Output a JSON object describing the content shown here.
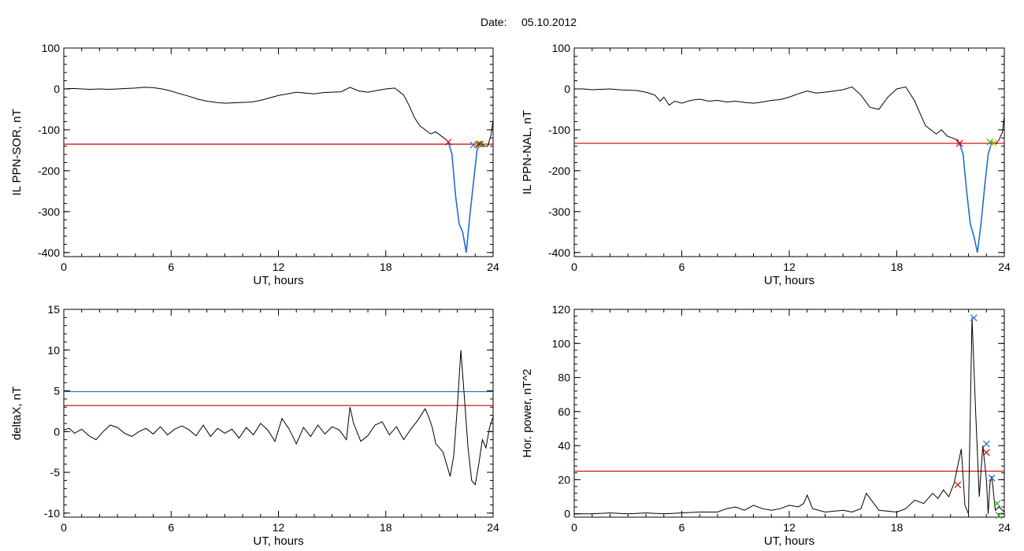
{
  "page": {
    "title_label": "Date:",
    "title_date": "05.10.2012"
  },
  "chart_data": [
    {
      "id": "sor",
      "type": "line",
      "xlabel": "UT, hours",
      "ylabel": "IL PPN-SOR, nT",
      "xlim": [
        0,
        24
      ],
      "ylim": [
        -410,
        100
      ],
      "xticks": [
        0,
        6,
        12,
        18,
        24
      ],
      "yticks": [
        100,
        0,
        -100,
        -200,
        -300,
        -400
      ],
      "threshold": {
        "value": -135,
        "color": "#cc0000"
      },
      "line_color": "#000000",
      "highlight_color": "#1f6fd6",
      "highlight_range": [
        21.5,
        23.3
      ],
      "series": [
        {
          "x": [
            0,
            0.5,
            1,
            1.5,
            2,
            2.5,
            3,
            3.5,
            4,
            4.5,
            5,
            5.5,
            6,
            6.5,
            7,
            7.5,
            8,
            8.5,
            9,
            9.5,
            10,
            10.5,
            11,
            11.5,
            12,
            12.5,
            13,
            13.5,
            14,
            14.5,
            15,
            15.5,
            16,
            16.5,
            17,
            17.5,
            18,
            18.5,
            19,
            19.3,
            19.6,
            19.9,
            20.2,
            20.5,
            20.8,
            21.1,
            21.4,
            21.5,
            21.7,
            21.9,
            22.1,
            22.3,
            22.5,
            22.7,
            22.9,
            23.1,
            23.3,
            23.5,
            23.7,
            23.9,
            24
          ],
          "y": [
            0,
            1,
            0,
            -1,
            0,
            -1,
            0,
            1,
            2,
            4,
            3,
            0,
            -5,
            -12,
            -18,
            -25,
            -30,
            -33,
            -35,
            -34,
            -33,
            -32,
            -28,
            -22,
            -16,
            -12,
            -8,
            -10,
            -12,
            -9,
            -8,
            -7,
            4,
            -5,
            -8,
            -4,
            0,
            2,
            -15,
            -40,
            -70,
            -90,
            -100,
            -110,
            -105,
            -115,
            -125,
            -130,
            -160,
            -260,
            -330,
            -350,
            -400,
            -310,
            -230,
            -150,
            -130,
            -140,
            -140,
            -110,
            -75
          ]
        }
      ],
      "markers": [
        {
          "x": 21.5,
          "y": -130,
          "color": "#cc0000"
        },
        {
          "x": 22.9,
          "y": -137,
          "color": "#1f6fd6"
        },
        {
          "x": 23.1,
          "y": -137,
          "color": "#e0a000"
        },
        {
          "x": 23.3,
          "y": -135,
          "color": "#22aa22"
        },
        {
          "x": 23.2,
          "y": -135,
          "color": "#cc0000"
        }
      ]
    },
    {
      "id": "nal",
      "type": "line",
      "xlabel": "UT, hours",
      "ylabel": "IL PPN-NAL, nT",
      "xlim": [
        0,
        24
      ],
      "ylim": [
        -410,
        100
      ],
      "xticks": [
        0,
        6,
        12,
        18,
        24
      ],
      "yticks": [
        100,
        0,
        -100,
        -200,
        -300,
        -400
      ],
      "threshold": {
        "value": -133,
        "color": "#cc0000"
      },
      "line_color": "#000000",
      "highlight_color": "#1f6fd6",
      "highlight_range": [
        21.5,
        23.3
      ],
      "series": [
        {
          "x": [
            0,
            0.5,
            1,
            1.5,
            2,
            2.5,
            3,
            3.5,
            4,
            4.5,
            4.8,
            5,
            5.3,
            5.6,
            6,
            6.5,
            7,
            7.5,
            8,
            8.5,
            9,
            9.5,
            10,
            10.5,
            11,
            11.5,
            12,
            12.5,
            13,
            13.5,
            14,
            14.5,
            15,
            15.5,
            16,
            16.5,
            17,
            17.5,
            18,
            18.5,
            19,
            19.3,
            19.6,
            19.9,
            20.2,
            20.5,
            20.8,
            21.1,
            21.4,
            21.5,
            21.7,
            21.9,
            22.1,
            22.3,
            22.5,
            22.7,
            22.9,
            23.1,
            23.3,
            23.5,
            23.7,
            23.9,
            24
          ],
          "y": [
            0,
            0,
            -2,
            -1,
            0,
            -2,
            -3,
            -4,
            -8,
            -15,
            -30,
            -20,
            -40,
            -30,
            -35,
            -28,
            -25,
            -30,
            -28,
            -32,
            -30,
            -33,
            -35,
            -32,
            -28,
            -26,
            -20,
            -12,
            -5,
            -10,
            -8,
            -5,
            -2,
            5,
            -15,
            -45,
            -50,
            -20,
            0,
            5,
            -30,
            -60,
            -90,
            -100,
            -110,
            -100,
            -115,
            -120,
            -125,
            -133,
            -160,
            -250,
            -330,
            -360,
            -400,
            -330,
            -240,
            -160,
            -130,
            -135,
            -125,
            -105,
            -65
          ]
        }
      ],
      "markers": [
        {
          "x": 21.5,
          "y": -133,
          "color": "#cc0000"
        },
        {
          "x": 23.2,
          "y": -130,
          "color": "#22aa22"
        },
        {
          "x": 23.4,
          "y": -132,
          "color": "#e0a000"
        }
      ]
    },
    {
      "id": "deltax",
      "type": "line",
      "xlabel": "UT, hours",
      "ylabel": "deltaX, nT",
      "xlim": [
        0,
        24
      ],
      "ylim": [
        -10.5,
        15
      ],
      "xticks": [
        0,
        6,
        12,
        18,
        24
      ],
      "yticks": [
        15,
        10,
        5,
        0,
        -5,
        -10
      ],
      "yticklabels": [
        "15",
        "10",
        "5",
        "0",
        "-5",
        "-10"
      ],
      "thresholds": [
        {
          "value": 4.9,
          "color": "#1a7aa0"
        },
        {
          "value": 3.2,
          "color": "#cc0000"
        }
      ],
      "line_color": "#000000",
      "series": [
        {
          "x": [
            0,
            0.3,
            0.6,
            1,
            1.4,
            1.8,
            2.2,
            2.6,
            3,
            3.4,
            3.8,
            4.2,
            4.6,
            5,
            5.4,
            5.8,
            6.2,
            6.6,
            7,
            7.4,
            7.8,
            8.2,
            8.6,
            9,
            9.4,
            9.8,
            10.2,
            10.6,
            11,
            11.4,
            11.8,
            12.2,
            12.6,
            13,
            13.4,
            13.8,
            14.2,
            14.6,
            15,
            15.4,
            15.8,
            16,
            16.2,
            16.6,
            17,
            17.4,
            17.8,
            18.2,
            18.6,
            19,
            19.4,
            19.8,
            20.2,
            20.4,
            20.6,
            20.8,
            21.2,
            21.6,
            21.8,
            22,
            22.2,
            22.4,
            22.6,
            22.8,
            23,
            23.2,
            23.4,
            23.6,
            23.8,
            24
          ],
          "y": [
            0.2,
            0.4,
            -0.2,
            0.3,
            -0.5,
            -1,
            0,
            0.8,
            0.5,
            -0.2,
            -0.6,
            0,
            0.4,
            -0.3,
            0.6,
            -0.4,
            0.3,
            0.7,
            0.2,
            -0.5,
            0.8,
            -0.6,
            0.4,
            -0.2,
            0.3,
            -0.8,
            0.5,
            -0.4,
            1,
            0.2,
            -1.2,
            1.6,
            0.3,
            -1.5,
            0.5,
            -0.6,
            0.8,
            -0.3,
            0.6,
            0.2,
            -1,
            3,
            1,
            -1.2,
            -0.5,
            0.8,
            1.2,
            -0.4,
            0.6,
            -1,
            0.3,
            1.4,
            2.8,
            1.8,
            0.5,
            -1.5,
            -2.5,
            -5.5,
            -3,
            3,
            10,
            4,
            -2,
            -6,
            -6.5,
            -4,
            -1,
            -2,
            0.5,
            1.8
          ]
        }
      ],
      "markers": []
    },
    {
      "id": "power",
      "type": "line",
      "xlabel": "UT, hours",
      "ylabel": "Hor. power, nT^2",
      "xlim": [
        0,
        24
      ],
      "ylim": [
        -2,
        120
      ],
      "xticks": [
        0,
        6,
        12,
        18,
        24
      ],
      "yticks": [
        120,
        100,
        80,
        60,
        40,
        20,
        0
      ],
      "threshold": {
        "value": 25,
        "color": "#cc0000"
      },
      "line_color": "#000000",
      "series": [
        {
          "x": [
            0,
            1,
            2,
            3,
            4,
            5,
            6,
            7,
            8,
            8.5,
            9,
            9.5,
            10,
            10.5,
            11,
            11.5,
            12,
            12.5,
            12.8,
            13,
            13.3,
            14,
            15,
            15.5,
            16,
            16.3,
            17,
            18,
            18.5,
            19,
            19.5,
            20,
            20.3,
            20.6,
            20.9,
            21.2,
            21.4,
            21.6,
            21.8,
            22,
            22.2,
            22.4,
            22.6,
            22.8,
            23,
            23.1,
            23.2,
            23.3,
            23.5,
            23.7,
            24
          ],
          "y": [
            0,
            0,
            0.5,
            0,
            0.5,
            0,
            0.5,
            1,
            1,
            3,
            4,
            2,
            5,
            3,
            2,
            3,
            5,
            4,
            6,
            11,
            3,
            1,
            2,
            1,
            3,
            12,
            2,
            1,
            3,
            8,
            6,
            12,
            9,
            14,
            10,
            18,
            28,
            38,
            5,
            0,
            115,
            60,
            10,
            40,
            20,
            0,
            18,
            22,
            2,
            4,
            1
          ]
        }
      ],
      "markers": [
        {
          "x": 21.4,
          "y": 17,
          "color": "#cc0000"
        },
        {
          "x": 22.3,
          "y": 115,
          "color": "#1f6fd6"
        },
        {
          "x": 23.0,
          "y": 41,
          "color": "#1f6fd6"
        },
        {
          "x": 23.0,
          "y": 36,
          "color": "#cc0000"
        },
        {
          "x": 23.3,
          "y": 21,
          "color": "#1f6fd6"
        },
        {
          "x": 23.6,
          "y": 6,
          "color": "#22aa22"
        },
        {
          "x": 23.7,
          "y": -1,
          "color": "#22aa22"
        }
      ]
    }
  ]
}
